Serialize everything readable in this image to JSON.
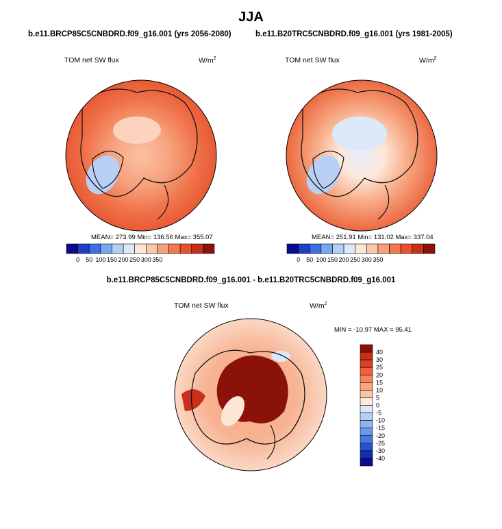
{
  "page_title": "JJA",
  "chart_data": [
    {
      "type": "heatmap",
      "projection": "north polar stereographic",
      "title": "b.e11.BRCP85C5CNBDRD.f09_g16.001 (yrs 2056-2080)",
      "variable": "TOM net SW flux",
      "units": "W/m",
      "units_sup": "2",
      "stats_text": "MEAN= 273.99  Min= 136.56  Max= 355.07",
      "mean": 273.99,
      "min": 136.56,
      "max": 355.07,
      "colorbar_orientation": "horizontal",
      "colorbar_labels": [
        "0",
        "50",
        "100",
        "150",
        "200",
        "250",
        "300",
        "350"
      ],
      "colorbar_colors": [
        "#0a0a8c",
        "#1f3fc8",
        "#3d6fe0",
        "#7aa5ef",
        "#b4cff5",
        "#dde9fa",
        "#fde6d6",
        "#fbc7a9",
        "#f7a07a",
        "#f2784e",
        "#e8502e",
        "#c8301a",
        "#8a1208"
      ]
    },
    {
      "type": "heatmap",
      "projection": "north polar stereographic",
      "title": "b.e11.B20TRC5CNBDRD.f09_g16.001 (yrs 1981-2005)",
      "variable": "TOM net SW flux",
      "units": "W/m",
      "units_sup": "2",
      "stats_text": "MEAN= 251.91  Min= 131.02  Max= 337.04",
      "mean": 251.91,
      "min": 131.02,
      "max": 337.04,
      "colorbar_orientation": "horizontal",
      "colorbar_labels": [
        "0",
        "50",
        "100",
        "150",
        "200",
        "250",
        "300",
        "350"
      ],
      "colorbar_colors": [
        "#0a0a8c",
        "#1f3fc8",
        "#3d6fe0",
        "#7aa5ef",
        "#b4cff5",
        "#dde9fa",
        "#fde6d6",
        "#fbc7a9",
        "#f7a07a",
        "#f2784e",
        "#e8502e",
        "#c8301a",
        "#8a1208"
      ]
    },
    {
      "type": "heatmap",
      "projection": "north polar stereographic",
      "title": "b.e11.BRCP85C5CNBDRD.f09_g16.001 - b.e11.B20TRC5CNBDRD.f09_g16.001",
      "variable": "TOM net SW flux",
      "units": "W/m",
      "units_sup": "2",
      "stats_text": "MIN = -10.97 MAX =  95.41",
      "min": -10.97,
      "max": 95.41,
      "colorbar_orientation": "vertical",
      "colorbar_labels": [
        "40",
        "30",
        "25",
        "20",
        "15",
        "10",
        "5",
        "0",
        "-5",
        "-10",
        "-15",
        "-20",
        "-25",
        "-30",
        "-40"
      ],
      "colorbar_colors": [
        "#8a1208",
        "#c8301a",
        "#e04020",
        "#f0603a",
        "#f5845a",
        "#f9a47e",
        "#fcc4a4",
        "#feeadc",
        "#dde9fa",
        "#b4cff5",
        "#8fb5f0",
        "#6a98ea",
        "#4878e0",
        "#2a52cc",
        "#0f2fb0",
        "#0a0a8c"
      ]
    }
  ]
}
